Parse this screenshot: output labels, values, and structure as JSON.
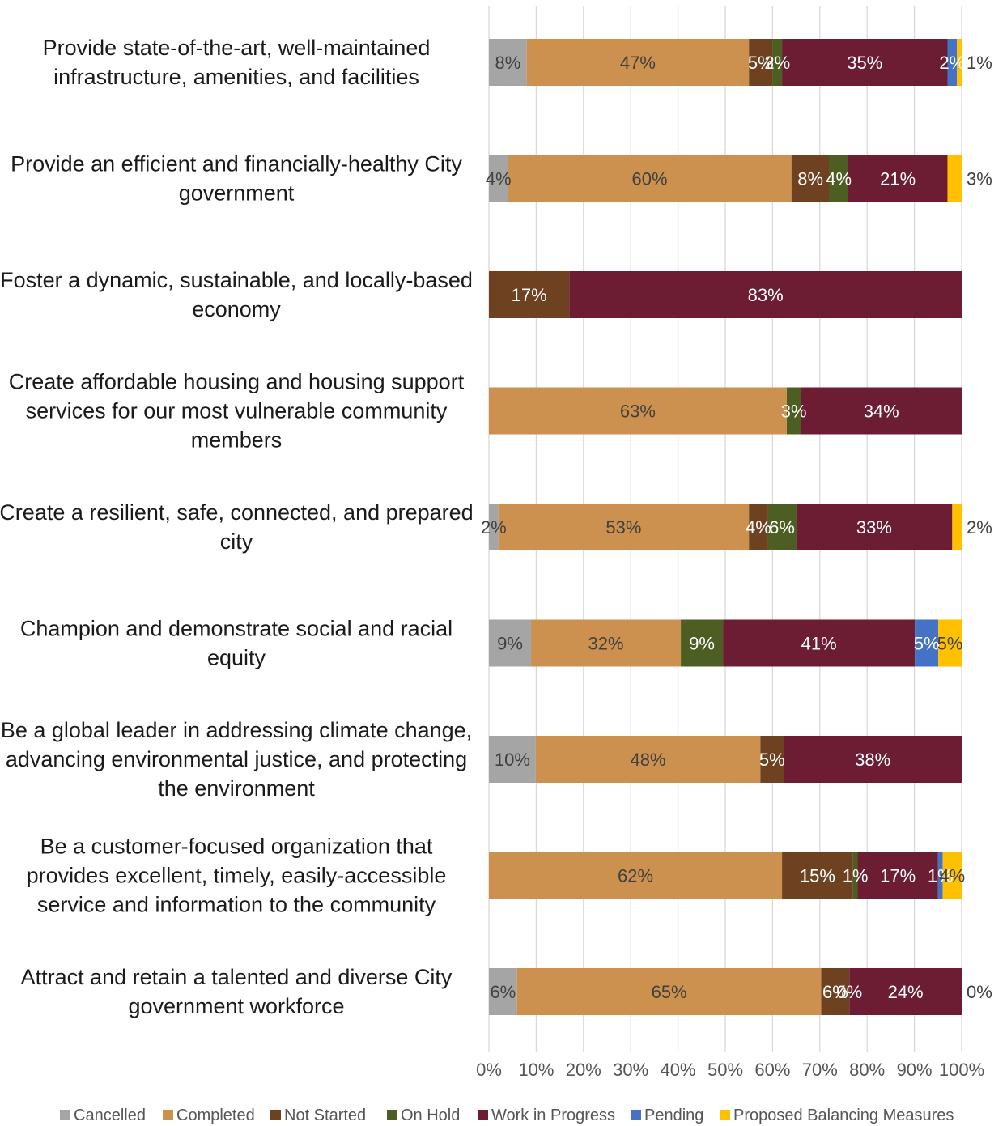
{
  "chart_data": {
    "type": "bar",
    "orientation": "horizontal",
    "stacked": "percent",
    "categories": [
      "Provide state-of-the-art, well-maintained infrastructure, amenities, and facilities",
      "Provide an efficient and financially-healthy City government",
      "Foster a dynamic, sustainable, and locally-based economy",
      "Create affordable housing and housing support services for our most vulnerable community members",
      "Create a resilient, safe, connected, and prepared city",
      "Champion and demonstrate social and racial equity",
      "Be a global leader in addressing climate change, advancing environmental justice, and protecting the environment",
      "Be a customer-focused organization that provides excellent, timely, easily-accessible service and information to the community",
      "Attract and retain a talented and diverse City government workforce"
    ],
    "category_lines": [
      [
        "Provide state-of-the-art, well-maintained",
        "infrastructure, amenities, and facilities"
      ],
      [
        "Provide an efficient and financially-healthy City",
        "government"
      ],
      [
        "Foster a dynamic, sustainable, and locally-based",
        "economy"
      ],
      [
        "Create affordable housing and housing support",
        "services for our most vulnerable community",
        "members"
      ],
      [
        "Create a resilient, safe, connected, and prepared",
        "city"
      ],
      [
        "Champion and demonstrate social and racial",
        "equity"
      ],
      [
        "Be a global leader in addressing climate change,",
        "advancing environmental justice, and protecting",
        "the environment"
      ],
      [
        "Be a customer-focused organization that",
        "provides excellent, timely, easily-accessible",
        "service and information to the community"
      ],
      [
        "Attract and retain a talented and diverse City",
        "government workforce"
      ]
    ],
    "series": [
      {
        "name": "Cancelled",
        "color": "#a5a5a5",
        "label_color": "#404040",
        "values": [
          8,
          4,
          null,
          null,
          2,
          9,
          10,
          null,
          6
        ]
      },
      {
        "name": "Completed",
        "color": "#cd914f",
        "label_color": "#404040",
        "values": [
          47,
          60,
          null,
          63,
          53,
          32,
          48,
          62,
          65
        ]
      },
      {
        "name": "Not Started",
        "color": "#6e4220",
        "label_color": "#ffffff",
        "values": [
          5,
          8,
          17,
          null,
          4,
          null,
          5,
          15,
          6
        ]
      },
      {
        "name": "On Hold",
        "color": "#4d5e23",
        "label_color": "#ffffff",
        "values": [
          2,
          4,
          null,
          3,
          6,
          9,
          null,
          1,
          0
        ]
      },
      {
        "name": "Work in Progress",
        "color": "#6c1d33",
        "label_color": "#ffffff",
        "values": [
          35,
          21,
          83,
          34,
          33,
          41,
          38,
          17,
          24
        ]
      },
      {
        "name": "Pending",
        "color": "#4472c4",
        "label_color": "#ffffff",
        "values": [
          2,
          null,
          null,
          null,
          null,
          5,
          null,
          1,
          null
        ]
      },
      {
        "name": "Proposed Balancing Measures",
        "color": "#ffc000",
        "label_color": "#404040",
        "values": [
          1,
          3,
          null,
          null,
          2,
          5,
          null,
          4,
          0
        ]
      }
    ],
    "xlim": [
      0,
      100
    ],
    "x_ticks": [
      "0%",
      "10%",
      "20%",
      "30%",
      "40%",
      "50%",
      "60%",
      "70%",
      "80%",
      "90%",
      "100%"
    ],
    "grid": "vertical",
    "legend": "bottom",
    "title": "",
    "xlabel": "",
    "ylabel": ""
  }
}
